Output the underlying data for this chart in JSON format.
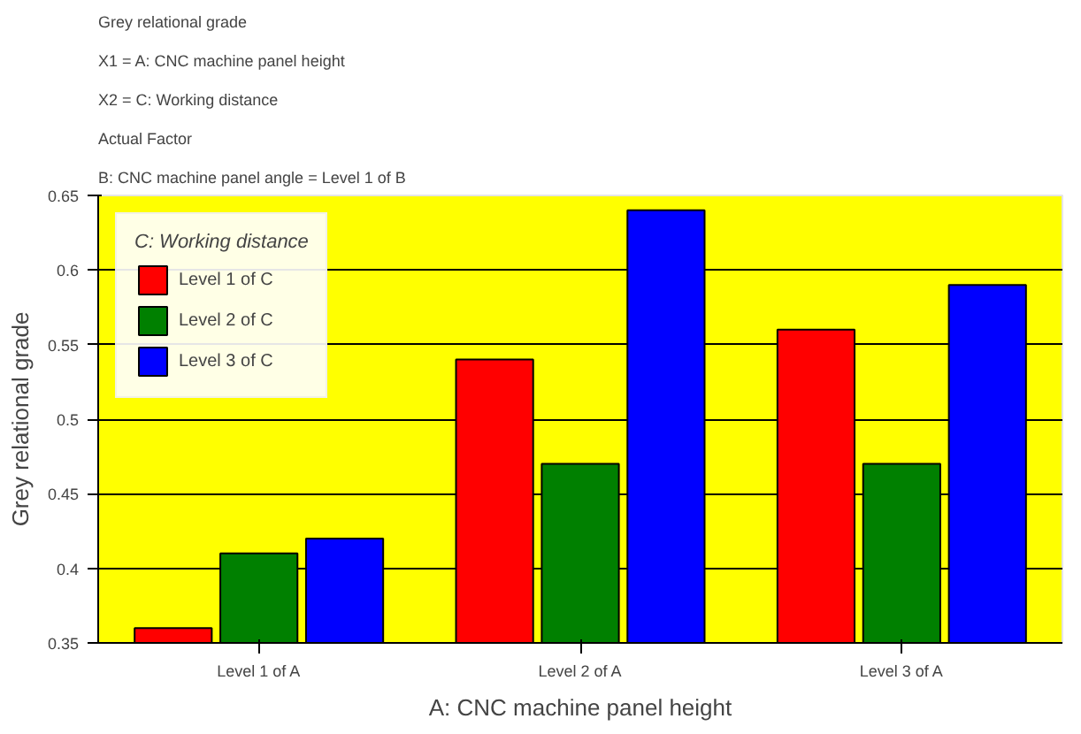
{
  "chart_data": {
    "type": "bar",
    "annotations": [
      "Grey relational grade",
      "X1 = A: CNC machine panel height",
      "X2 = C: Working distance",
      "Actual Factor",
      "B: CNC machine panel angle = Level 1 of B"
    ],
    "xlabel": "A: CNC machine panel height",
    "ylabel": "Grey relational grade",
    "legend_title": "C: Working distance",
    "categories": [
      "Level 1 of A",
      "Level 2 of A",
      "Level 3 of A"
    ],
    "series": [
      {
        "name": "Level 1 of C",
        "color": "#ff0000",
        "values": [
          0.36,
          0.54,
          0.56
        ]
      },
      {
        "name": "Level 2 of C",
        "color": "#008000",
        "values": [
          0.41,
          0.47,
          0.47
        ]
      },
      {
        "name": "Level 3 of C",
        "color": "#0000ff",
        "values": [
          0.42,
          0.64,
          0.59
        ]
      }
    ],
    "ylim": [
      0.35,
      0.65
    ],
    "yticks": [
      0.35,
      0.4,
      0.45,
      0.5,
      0.55,
      0.6,
      0.65
    ],
    "grid": "y",
    "legend": "top left"
  }
}
